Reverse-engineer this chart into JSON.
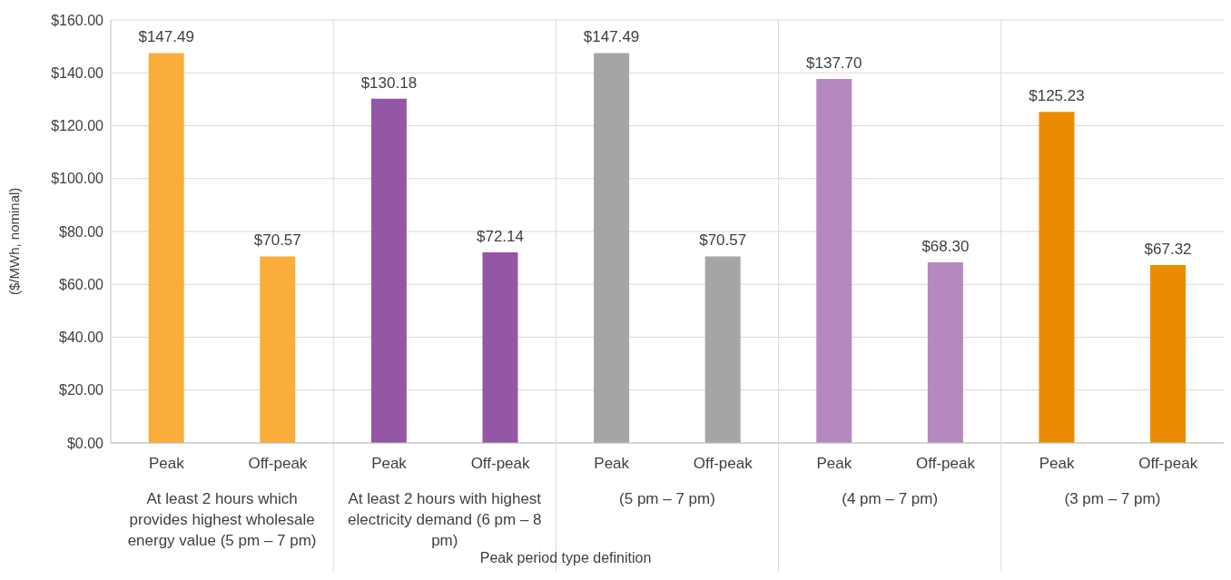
{
  "chart_data": {
    "type": "bar",
    "ylabel": "($/MWh, nominal)",
    "categories": [
      "Peak",
      "Off-peak",
      "Peak",
      "Off-peak",
      "Peak",
      "Off-peak",
      "Peak",
      "Off-peak",
      "Peak",
      "Off-peak"
    ],
    "values": [
      147.49,
      70.57,
      130.18,
      72.14,
      147.49,
      70.57,
      137.7,
      68.3,
      125.23,
      67.32
    ],
    "colors": [
      "#fbad3c",
      "#fbad3c",
      "#9656a6",
      "#9656a6",
      "#a5a5a5",
      "#a5a5a5",
      "#b589c0",
      "#b589c0",
      "#ea8c00",
      "#ea8c00"
    ],
    "value_labels": [
      "$147.49",
      "$70.57",
      "$130.18",
      "$72.14",
      "$147.49",
      "$70.57",
      "$137.70",
      "$68.30",
      "$125.23",
      "$67.32"
    ],
    "ylim": [
      0,
      160
    ],
    "yticks": [
      {
        "value": 0,
        "label": "$0.00"
      },
      {
        "value": 20,
        "label": "$20.00"
      },
      {
        "value": 40,
        "label": "$40.00"
      },
      {
        "value": 60,
        "label": "$60.00"
      },
      {
        "value": 80,
        "label": "$80.00"
      },
      {
        "value": 100,
        "label": "$100.00"
      },
      {
        "value": 120,
        "label": "$120.00"
      },
      {
        "value": 140,
        "label": "$140.00"
      },
      {
        "value": 160,
        "label": "$160.00"
      }
    ],
    "grid": "y",
    "annotations": [
      "At least 2 hours which provides highest wholesale energy value (5 pm – 7 pm)",
      "At least 2 hours with highest electricity demand (6 pm – 8 pm)",
      "(5 pm – 7 pm)",
      "(4 pm – 7 pm)",
      "(3 pm – 7 pm)",
      "Peak period type definition"
    ]
  }
}
